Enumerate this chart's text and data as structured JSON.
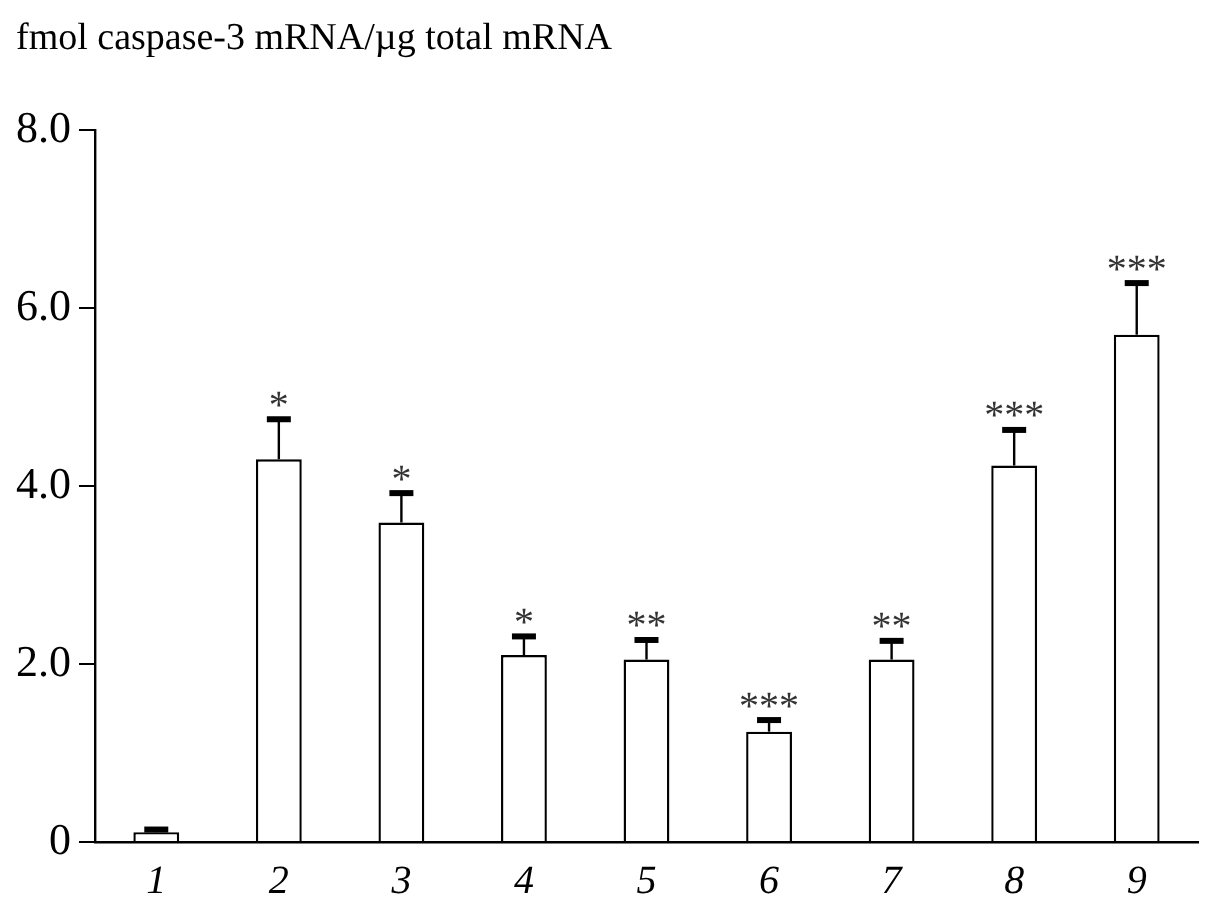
{
  "chart_data": {
    "type": "bar",
    "ylabel": "fmol caspase-3 mRNA/µg total mRNA",
    "categories": [
      "1",
      "2",
      "3",
      "4",
      "5",
      "6",
      "7",
      "8",
      "9"
    ],
    "values": [
      0.11,
      4.3,
      3.59,
      2.1,
      2.05,
      1.24,
      2.05,
      4.23,
      5.7
    ],
    "errors": [
      [
        0.11,
        0.14
      ],
      [
        4.3,
        4.75
      ],
      [
        3.59,
        3.92
      ],
      [
        2.1,
        2.31
      ],
      [
        2.05,
        2.27
      ],
      [
        1.24,
        1.37
      ],
      [
        2.05,
        2.26
      ],
      [
        4.23,
        4.63
      ],
      [
        5.7,
        6.28
      ]
    ],
    "color": "#ffffff",
    "ylim": [
      0,
      8
    ],
    "yticks": [
      0,
      {
        "value": 2,
        "label": "2.0"
      },
      {
        "value": 4,
        "label": "4.0"
      },
      {
        "value": 6,
        "label": "6.0"
      },
      {
        "value": 8,
        "label": "8.0"
      }
    ],
    "grid": false,
    "legend": false,
    "annotations": [
      {
        "text": "*",
        "x": "2",
        "y": 4.75
      },
      {
        "text": "*",
        "x": "3",
        "y": 3.92
      },
      {
        "text": "*",
        "x": "4",
        "y": 2.31
      },
      {
        "text": "**",
        "x": "5",
        "y": 2.27
      },
      {
        "text": "***",
        "x": "6",
        "y": 1.37
      },
      {
        "text": "**",
        "x": "7",
        "y": 2.26
      },
      {
        "text": "***",
        "x": "8",
        "y": 4.63
      },
      {
        "text": "***",
        "x": "9",
        "y": 6.28
      }
    ]
  }
}
